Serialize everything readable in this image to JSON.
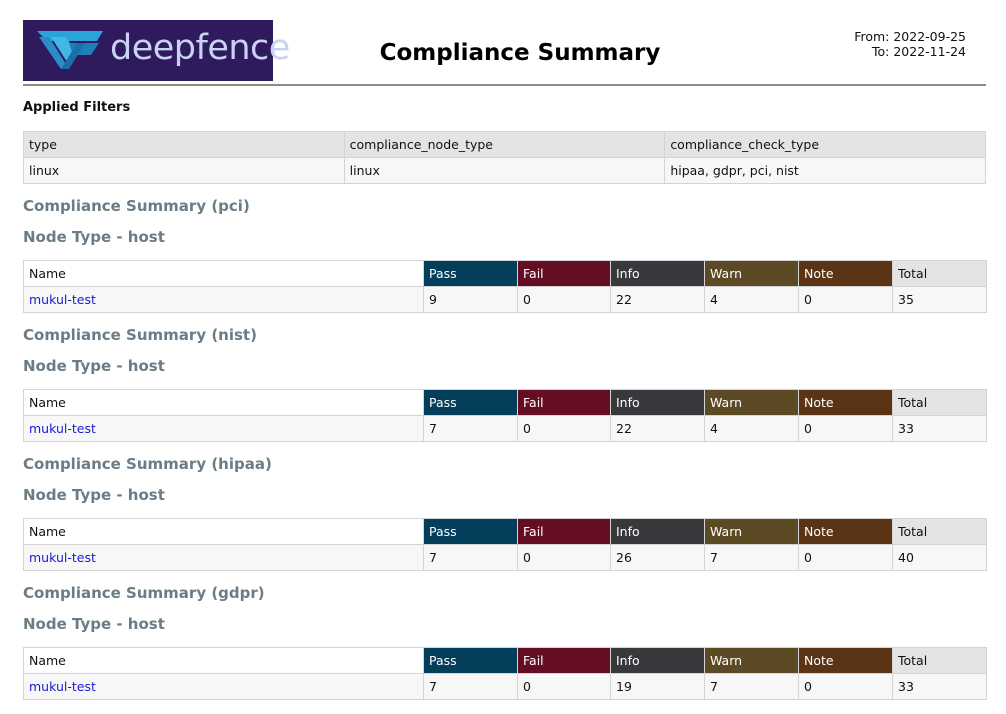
{
  "header": {
    "logo_text": "deepfence",
    "title": "Compliance Summary",
    "from": "From: 2022-09-25",
    "to": "To: 2022-11-24"
  },
  "filters": {
    "title": "Applied Filters",
    "columns": [
      "type",
      "compliance_node_type",
      "compliance_check_type"
    ],
    "values": [
      "linux",
      "linux",
      "hipaa, gdpr, pci, nist"
    ]
  },
  "colors": {
    "pass": "#033f5a",
    "fail": "#650d22",
    "info": "#38393d",
    "warn": "#5c4a25",
    "note": "#5a3414",
    "link": "#1a1ad6",
    "section": "#6b7c86"
  },
  "summary_columns": [
    "Name",
    "Pass",
    "Fail",
    "Info",
    "Warn",
    "Note",
    "Total"
  ],
  "sections": [
    {
      "title": "Compliance Summary (pci)",
      "node_type": "Node Type - host",
      "row": [
        "mukul-test",
        "9",
        "0",
        "22",
        "4",
        "0",
        "35"
      ]
    },
    {
      "title": "Compliance Summary (nist)",
      "node_type": "Node Type - host",
      "row": [
        "mukul-test",
        "7",
        "0",
        "22",
        "4",
        "0",
        "33"
      ]
    },
    {
      "title": "Compliance Summary (hipaa)",
      "node_type": "Node Type - host",
      "row": [
        "mukul-test",
        "7",
        "0",
        "26",
        "7",
        "0",
        "40"
      ]
    },
    {
      "title": "Compliance Summary (gdpr)",
      "node_type": "Node Type - host",
      "row": [
        "mukul-test",
        "7",
        "0",
        "19",
        "7",
        "0",
        "33"
      ]
    }
  ]
}
